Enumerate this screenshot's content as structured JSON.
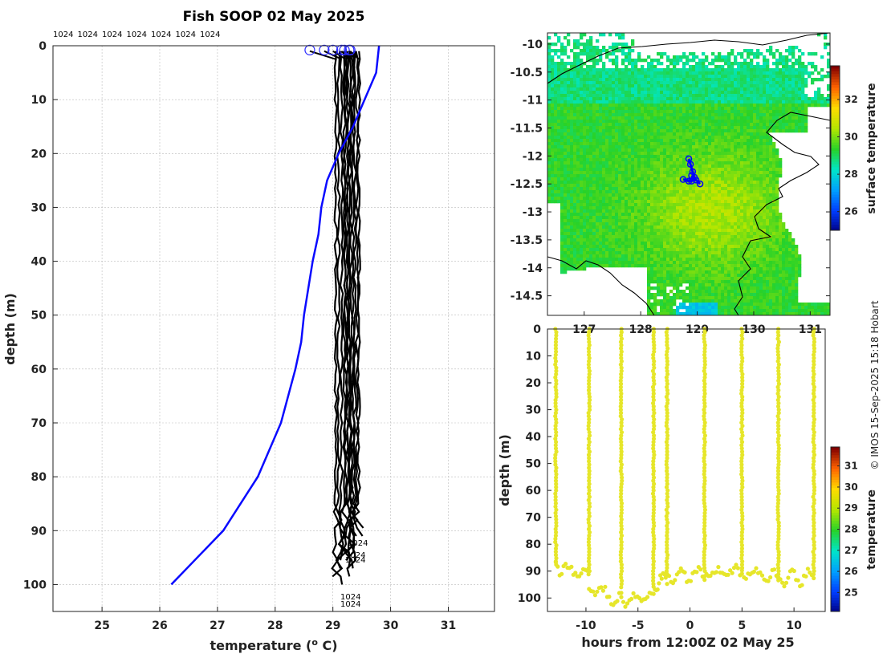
{
  "chart_data": [
    {
      "type": "line",
      "title": "Fish SOOP 02 May 2025",
      "xlabel": "temperature (",
      "xlabel_sup": "o",
      "xlabel_end": " C)",
      "ylabel": "depth (m)",
      "xlim": [
        24.15,
        31.8
      ],
      "ylim": [
        105,
        0
      ],
      "xticks": [
        "25",
        "26",
        "27",
        "28",
        "29",
        "30",
        "31"
      ],
      "yticks": [
        "0",
        "10",
        "20",
        "30",
        "40",
        "50",
        "60",
        "70",
        "80",
        "90",
        "100"
      ],
      "top_labels": [
        "1024",
        "1024",
        "1024",
        "1024",
        "1024",
        "1024",
        "1024"
      ],
      "bottom_labels": [
        "1024",
        "1024",
        "1024",
        "1024",
        "1024"
      ],
      "climatology": {
        "name": "climatology",
        "color": "#0a0aff",
        "temp": [
          29.8,
          29.75,
          29.55,
          29.35,
          29.1,
          28.9,
          28.8,
          28.75,
          28.65,
          28.5,
          28.45,
          28.35,
          28.1,
          27.7,
          27.1,
          26.2
        ],
        "depth": [
          0,
          5,
          10,
          15,
          20,
          25,
          30,
          35,
          40,
          50,
          55,
          60,
          70,
          80,
          90,
          100
        ]
      },
      "profiles": {
        "name": "profiles",
        "color": "#000",
        "base_temp": [
          29.05,
          29.1,
          29.15,
          29.2,
          29.22,
          29.25,
          29.27,
          29.3,
          29.32,
          29.35,
          29.38,
          29.42,
          29.45
        ],
        "max_depth": [
          100,
          99,
          97,
          98,
          96,
          95,
          97,
          96,
          99,
          94,
          92,
          91,
          90
        ],
        "surface_temp": [
          28.6,
          28.85,
          29.0,
          29.15,
          29.2,
          29.28,
          29.3
        ]
      }
    },
    {
      "type": "heatmap",
      "name": "surface temperature map",
      "colorbar_label": "surface temperature",
      "colorbar_ticks": [
        "26",
        "28",
        "30",
        "32"
      ],
      "colorbar_range": [
        25.0,
        33.8
      ],
      "xlim": [
        126.35,
        131.35
      ],
      "ylim": [
        -14.85,
        -9.8
      ],
      "xticks": [
        "127",
        "128",
        "129",
        "130",
        "131"
      ],
      "yticks": [
        "-10",
        "-10.5",
        "-11",
        "-11.5",
        "-12",
        "-12.5",
        "-13",
        "-13.5",
        "-14",
        "-14.5"
      ],
      "track": {
        "lon": [
          128.85,
          128.88,
          128.92,
          128.95,
          128.9,
          128.75,
          128.85,
          128.98,
          129.05,
          128.9
        ],
        "lat": [
          -12.05,
          -12.15,
          -12.28,
          -12.38,
          -12.45,
          -12.42,
          -12.45,
          -12.43,
          -12.5,
          -12.35
        ]
      }
    },
    {
      "type": "scatter",
      "name": "temperature time-depth section",
      "xlabel": "hours from 12:00Z 02 May 25",
      "ylabel": "depth (m)",
      "colorbar_label": "temperature",
      "colorbar_ticks": [
        "25",
        "26",
        "27",
        "28",
        "29",
        "30",
        "31"
      ],
      "colorbar_range": [
        24.1,
        31.9
      ],
      "xlim": [
        -13.7,
        13.0
      ],
      "ylim": [
        105,
        0
      ],
      "xticks": [
        "-10",
        "-5",
        "0",
        "5",
        "10"
      ],
      "yticks": [
        "0",
        "10",
        "20",
        "30",
        "40",
        "50",
        "60",
        "70",
        "80",
        "90",
        "100"
      ],
      "cast_hours": [
        -12.9,
        -9.7,
        -6.6,
        -3.5,
        -2.2,
        1.4,
        5.0,
        8.5,
        11.9
      ],
      "cast_bottom": [
        88,
        92,
        97,
        95,
        92,
        91,
        90,
        93,
        92
      ],
      "point_color": "#e6e62a"
    }
  ],
  "credit": "© IMOS 15-Sep-2025 15:18 Hobart"
}
